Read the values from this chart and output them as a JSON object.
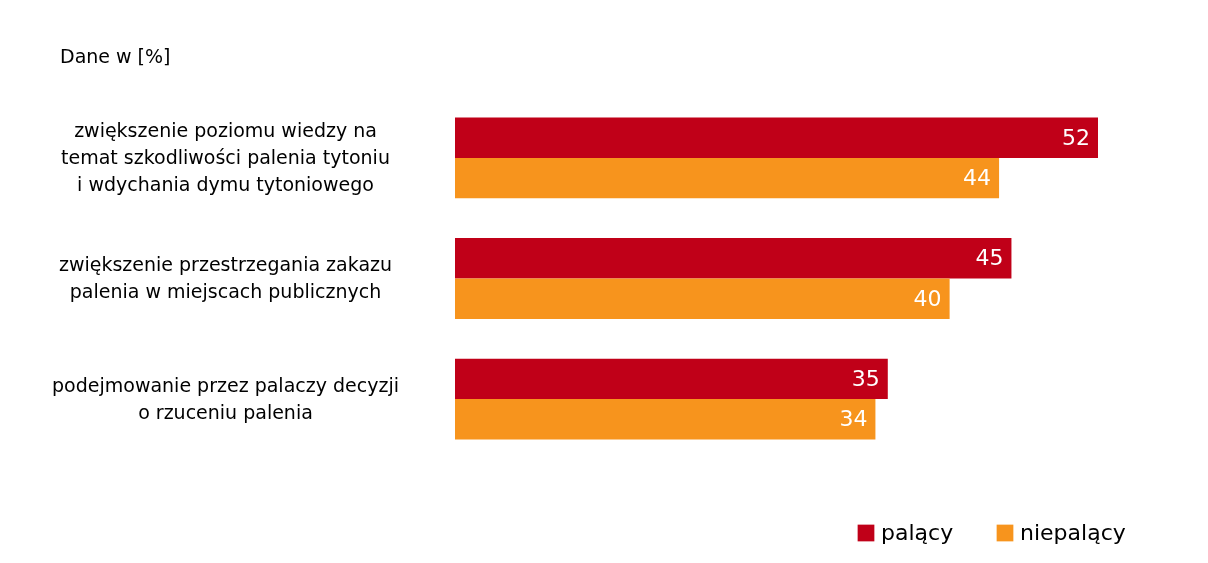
{
  "chart_data": {
    "type": "bar",
    "orientation": "horizontal",
    "annotations": [
      "Dane w [%]"
    ],
    "categories": [
      "zwiększenie poziomu wiedzy na temat szkodliwości palenia tytoniu i wdychania dymu tytoniowego",
      "zwiększenie przestrzegania zakazu palenia w miejscach publicznych",
      "podejmowanie przez palaczy decyzji o rzuceniu palenia"
    ],
    "series": [
      {
        "name": "palący",
        "color": "#c00018",
        "values": [
          52,
          45,
          35
        ]
      },
      {
        "name": "niepalący",
        "color": "#f7941d",
        "values": [
          44,
          40,
          34
        ]
      }
    ],
    "data_labels": true,
    "legend": "bottom right"
  }
}
